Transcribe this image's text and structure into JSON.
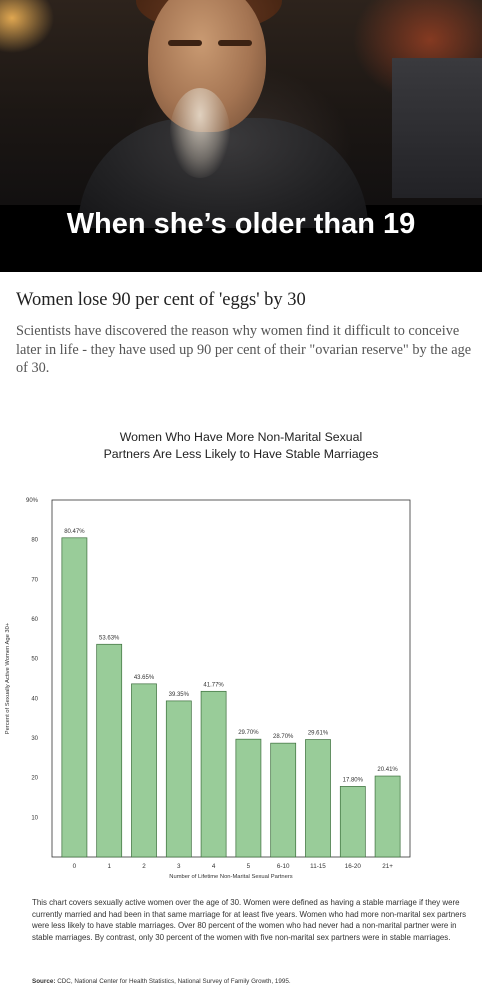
{
  "meme": {
    "caption": "When she’s older than 19"
  },
  "article": {
    "headline": "Women lose 90 per cent of 'eggs' by 30",
    "summary": "Scientists have discovered the reason why women find it difficult to conceive later in life - they have used up 90 per cent of their \"ovarian reserve\" by the age of 30."
  },
  "chart_data": {
    "type": "bar",
    "title_line1": "Women Who Have More Non-Marital Sexual",
    "title_line2": "Partners Are Less Likely to Have Stable Marriages",
    "xlabel": "Number of Lifetime Non-Marital Sexual Partners",
    "ylabel": "Percent of Sexually Active Women Age 30+",
    "ylim": [
      0,
      90
    ],
    "yticks": [
      10,
      20,
      30,
      40,
      50,
      60,
      70,
      80,
      90
    ],
    "ytick_labels": [
      "10",
      "20",
      "30",
      "40",
      "50",
      "60",
      "70",
      "80",
      "90%"
    ],
    "categories": [
      "0",
      "1",
      "2",
      "3",
      "4",
      "5",
      "6-10",
      "11-15",
      "16-20",
      "21+"
    ],
    "values": [
      80.47,
      53.63,
      43.65,
      39.35,
      41.77,
      29.7,
      28.7,
      29.61,
      17.8,
      20.41
    ],
    "data_labels": [
      "80.47%",
      "53.63%",
      "43.65%",
      "39.35%",
      "41.77%",
      "29.70%",
      "28.70%",
      "29.61%",
      "17.80%",
      "20.41%"
    ],
    "bar_color": "#99cc99",
    "bar_border": "#3c6e3c",
    "grid": false
  },
  "footnote": "This chart covers sexually active women over the age of 30. Women were defined as having a stable marriage if they were currently married and had been in that same marriage for at least five years. Women who had more non-marital sex partners were less likely to have stable marriages. Over 80 percent of the women who had never had a non-marital partner were in stable marriages. By contrast, only 30 percent of the women with five non-marital sex partners were in stable marriages.",
  "source": {
    "label": "Source:",
    "text": "CDC, National Center for Health Statistics, National Survey of Family Growth, 1995."
  }
}
